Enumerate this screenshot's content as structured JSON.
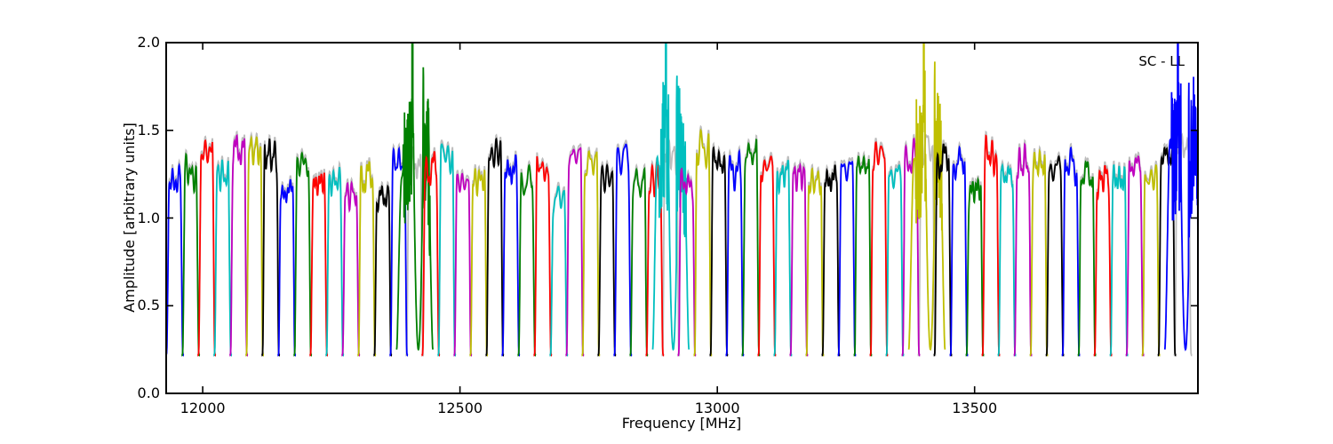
{
  "chart_data": {
    "type": "line",
    "title": "",
    "xlabel": "Frequency [MHz]",
    "ylabel": "Amplitude [arbitrary units]",
    "annotation": "SC - LL",
    "xlim": [
      11929,
      13934
    ],
    "ylim": [
      0.0,
      2.0
    ],
    "xticks": [
      12000,
      12500,
      13000,
      13500
    ],
    "yticks": [
      0.0,
      0.5,
      1.0,
      1.5,
      2.0
    ],
    "ytick_labels": [
      "0.0",
      "0.5",
      "1.0",
      "1.5",
      "2.0"
    ],
    "grid": false,
    "legend": null,
    "palette": {
      "b": "#0000ff",
      "g": "#008000",
      "r": "#ff0000",
      "c": "#00bfbf",
      "m": "#bf00bf",
      "y": "#bfbf00",
      "k": "#000000",
      "ref": "#bdbdbd"
    },
    "band_model": {
      "description": "64 contiguous sub-band bandpass curves; each rises steeply from ~0.25, has a rippled rounded top at its peak amplitude, and falls steeply back to ~0.25; a faint gray reference curve sits just behind each colored curve; sub-bands 16, 32, 48 and 64 are RFI-corrupted with noisy oscillations, deep dips and narrow spikes that clip at the top of the axes",
      "start_mhz": 11930,
      "band_width_mhz": 31.1,
      "base_amp": 0.25,
      "ref_offset": 0.022,
      "noise_seed": 11
    },
    "bands": [
      {
        "color": "b",
        "peak": 1.3,
        "corrupted": false
      },
      {
        "color": "g",
        "peak": 1.36,
        "corrupted": false
      },
      {
        "color": "r",
        "peak": 1.44,
        "corrupted": false
      },
      {
        "color": "c",
        "peak": 1.33,
        "corrupted": false
      },
      {
        "color": "m",
        "peak": 1.47,
        "corrupted": false
      },
      {
        "color": "y",
        "peak": 1.46,
        "corrupted": false
      },
      {
        "color": "k",
        "peak": 1.45,
        "corrupted": false
      },
      {
        "color": "b",
        "peak": 1.22,
        "corrupted": false
      },
      {
        "color": "g",
        "peak": 1.37,
        "corrupted": false
      },
      {
        "color": "r",
        "peak": 1.26,
        "corrupted": false
      },
      {
        "color": "c",
        "peak": 1.29,
        "corrupted": false
      },
      {
        "color": "m",
        "peak": 1.2,
        "corrupted": false
      },
      {
        "color": "y",
        "peak": 1.32,
        "corrupted": false
      },
      {
        "color": "k",
        "peak": 1.18,
        "corrupted": false
      },
      {
        "color": "b",
        "peak": 1.4,
        "corrupted": false
      },
      {
        "color": "g",
        "peak": 1.38,
        "corrupted": true
      },
      {
        "color": "r",
        "peak": 1.38,
        "corrupted": false
      },
      {
        "color": "c",
        "peak": 1.42,
        "corrupted": false
      },
      {
        "color": "m",
        "peak": 1.25,
        "corrupted": false
      },
      {
        "color": "y",
        "peak": 1.28,
        "corrupted": false
      },
      {
        "color": "k",
        "peak": 1.45,
        "corrupted": false
      },
      {
        "color": "b",
        "peak": 1.36,
        "corrupted": false
      },
      {
        "color": "g",
        "peak": 1.3,
        "corrupted": false
      },
      {
        "color": "r",
        "peak": 1.35,
        "corrupted": false
      },
      {
        "color": "c",
        "peak": 1.18,
        "corrupted": false
      },
      {
        "color": "m",
        "peak": 1.4,
        "corrupted": false
      },
      {
        "color": "y",
        "peak": 1.38,
        "corrupted": false
      },
      {
        "color": "k",
        "peak": 1.3,
        "corrupted": false
      },
      {
        "color": "b",
        "peak": 1.42,
        "corrupted": false
      },
      {
        "color": "g",
        "peak": 1.28,
        "corrupted": false
      },
      {
        "color": "r",
        "peak": 1.32,
        "corrupted": false
      },
      {
        "color": "c",
        "peak": 1.42,
        "corrupted": true
      },
      {
        "color": "m",
        "peak": 1.28,
        "corrupted": false
      },
      {
        "color": "y",
        "peak": 1.5,
        "corrupted": false
      },
      {
        "color": "k",
        "peak": 1.4,
        "corrupted": false
      },
      {
        "color": "b",
        "peak": 1.38,
        "corrupted": false
      },
      {
        "color": "g",
        "peak": 1.45,
        "corrupted": false
      },
      {
        "color": "r",
        "peak": 1.35,
        "corrupted": false
      },
      {
        "color": "c",
        "peak": 1.33,
        "corrupted": false
      },
      {
        "color": "m",
        "peak": 1.3,
        "corrupted": false
      },
      {
        "color": "y",
        "peak": 1.28,
        "corrupted": false
      },
      {
        "color": "k",
        "peak": 1.3,
        "corrupted": false
      },
      {
        "color": "b",
        "peak": 1.32,
        "corrupted": false
      },
      {
        "color": "g",
        "peak": 1.35,
        "corrupted": false
      },
      {
        "color": "r",
        "peak": 1.43,
        "corrupted": false
      },
      {
        "color": "c",
        "peak": 1.3,
        "corrupted": false
      },
      {
        "color": "m",
        "peak": 1.45,
        "corrupted": false
      },
      {
        "color": "y",
        "peak": 1.45,
        "corrupted": true
      },
      {
        "color": "k",
        "peak": 1.42,
        "corrupted": false
      },
      {
        "color": "b",
        "peak": 1.4,
        "corrupted": false
      },
      {
        "color": "g",
        "peak": 1.22,
        "corrupted": false
      },
      {
        "color": "r",
        "peak": 1.47,
        "corrupted": false
      },
      {
        "color": "c",
        "peak": 1.3,
        "corrupted": false
      },
      {
        "color": "m",
        "peak": 1.42,
        "corrupted": false
      },
      {
        "color": "y",
        "peak": 1.38,
        "corrupted": false
      },
      {
        "color": "k",
        "peak": 1.35,
        "corrupted": false
      },
      {
        "color": "b",
        "peak": 1.4,
        "corrupted": false
      },
      {
        "color": "g",
        "peak": 1.32,
        "corrupted": false
      },
      {
        "color": "r",
        "peak": 1.3,
        "corrupted": false
      },
      {
        "color": "c",
        "peak": 1.3,
        "corrupted": false
      },
      {
        "color": "m",
        "peak": 1.35,
        "corrupted": false
      },
      {
        "color": "y",
        "peak": 1.3,
        "corrupted": false
      },
      {
        "color": "k",
        "peak": 1.4,
        "corrupted": false
      },
      {
        "color": "b",
        "peak": 1.45,
        "corrupted": true
      }
    ]
  }
}
